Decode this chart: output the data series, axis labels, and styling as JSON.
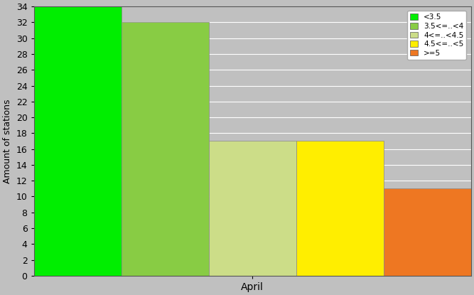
{
  "bars": [
    {
      "label": "<3.5",
      "value": 34,
      "color": "#00ee00"
    },
    {
      "label": "3.5<=..<4",
      "value": 32,
      "color": "#88cc44"
    },
    {
      "label": "4<=..<4.5",
      "value": 17,
      "color": "#ccdd88"
    },
    {
      "label": "4.5<=..<5",
      "value": 17,
      "color": "#ffee00"
    },
    {
      "label": ">=5",
      "value": 11,
      "color": "#ee7722"
    }
  ],
  "ylabel": "Amount of stations",
  "xlabel_label": "April",
  "xlabel_tick_pos": 2,
  "ylim": [
    0,
    34
  ],
  "yticks": [
    0,
    2,
    4,
    6,
    8,
    10,
    12,
    14,
    16,
    18,
    20,
    22,
    24,
    26,
    28,
    30,
    32,
    34
  ],
  "background_color": "#c0c0c0",
  "plot_area_color": "#c0c0c0",
  "bar_edge_color": "#888888",
  "bar_width": 1.0,
  "legend_colors": [
    "#00ee00",
    "#88cc44",
    "#ccdd88",
    "#ffee00",
    "#ee7722"
  ],
  "legend_labels": [
    "<3.5",
    "3.5<=..<4",
    "4<=..<4.5",
    "4.5<=..<5",
    ">=5"
  ],
  "figsize": [
    6.67,
    4.15
  ],
  "dpi": 100
}
